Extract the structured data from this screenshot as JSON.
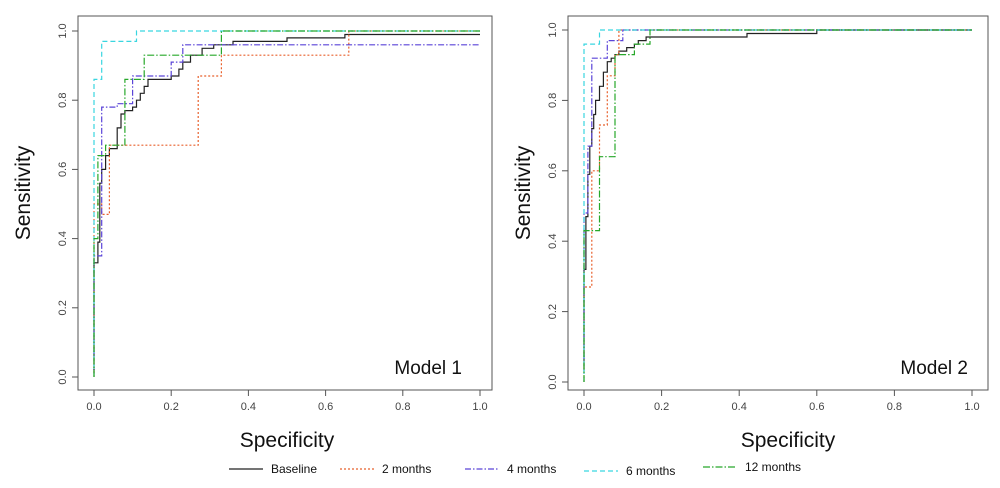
{
  "chart_data": [
    {
      "type": "line",
      "panel_label": "Model 1",
      "xlabel": "Specificity",
      "ylabel": "Sensitivity",
      "xlim": [
        0,
        1
      ],
      "ylim": [
        0,
        1
      ],
      "x_ticks": [
        "0.0",
        "0.2",
        "0.4",
        "0.6",
        "0.8",
        "1.0"
      ],
      "y_ticks": [
        "0.0",
        "0.2",
        "0.4",
        "0.6",
        "0.8",
        "1.0"
      ],
      "grid": false,
      "series": [
        {
          "name": "Baseline",
          "color": "#222222",
          "dash": "",
          "points": [
            [
              0,
              0.01
            ],
            [
              0,
              0.33
            ],
            [
              0.01,
              0.33
            ],
            [
              0.01,
              0.39
            ],
            [
              0.015,
              0.39
            ],
            [
              0.015,
              0.56
            ],
            [
              0.02,
              0.56
            ],
            [
              0.02,
              0.6
            ],
            [
              0.03,
              0.6
            ],
            [
              0.03,
              0.64
            ],
            [
              0.04,
              0.64
            ],
            [
              0.04,
              0.66
            ],
            [
              0.06,
              0.66
            ],
            [
              0.06,
              0.72
            ],
            [
              0.07,
              0.72
            ],
            [
              0.07,
              0.76
            ],
            [
              0.08,
              0.76
            ],
            [
              0.08,
              0.77
            ],
            [
              0.1,
              0.77
            ],
            [
              0.1,
              0.78
            ],
            [
              0.11,
              0.78
            ],
            [
              0.11,
              0.8
            ],
            [
              0.12,
              0.8
            ],
            [
              0.12,
              0.82
            ],
            [
              0.13,
              0.82
            ],
            [
              0.13,
              0.84
            ],
            [
              0.14,
              0.84
            ],
            [
              0.14,
              0.86
            ],
            [
              0.2,
              0.86
            ],
            [
              0.2,
              0.87
            ],
            [
              0.22,
              0.87
            ],
            [
              0.22,
              0.89
            ],
            [
              0.23,
              0.89
            ],
            [
              0.23,
              0.91
            ],
            [
              0.25,
              0.91
            ],
            [
              0.25,
              0.93
            ],
            [
              0.28,
              0.93
            ],
            [
              0.28,
              0.95
            ],
            [
              0.31,
              0.95
            ],
            [
              0.31,
              0.96
            ],
            [
              0.36,
              0.96
            ],
            [
              0.36,
              0.97
            ],
            [
              0.5,
              0.97
            ],
            [
              0.5,
              0.98
            ],
            [
              0.65,
              0.98
            ],
            [
              0.65,
              0.99
            ],
            [
              1.0,
              0.99
            ]
          ]
        },
        {
          "name": "2 months",
          "color": "#e8602c",
          "dash": "2,2",
          "points": [
            [
              0,
              0.0
            ],
            [
              0,
              0.5
            ],
            [
              0.02,
              0.5
            ],
            [
              0.02,
              0.47
            ],
            [
              0.04,
              0.47
            ],
            [
              0.04,
              0.67
            ],
            [
              0.27,
              0.67
            ],
            [
              0.27,
              0.87
            ],
            [
              0.33,
              0.87
            ],
            [
              0.33,
              0.93
            ],
            [
              0.66,
              0.93
            ],
            [
              0.66,
              1.0
            ],
            [
              1.0,
              1.0
            ]
          ]
        },
        {
          "name": "4 months",
          "color": "#5a44d8",
          "dash": "6,2,1.5,2",
          "points": [
            [
              0,
              0.06
            ],
            [
              0,
              0.35
            ],
            [
              0.02,
              0.35
            ],
            [
              0.02,
              0.78
            ],
            [
              0.06,
              0.78
            ],
            [
              0.06,
              0.79
            ],
            [
              0.1,
              0.79
            ],
            [
              0.1,
              0.87
            ],
            [
              0.2,
              0.87
            ],
            [
              0.2,
              0.91
            ],
            [
              0.23,
              0.91
            ],
            [
              0.23,
              0.96
            ],
            [
              1.0,
              0.96
            ]
          ]
        },
        {
          "name": "6 months",
          "color": "#39d6e0",
          "dash": "5,3",
          "points": [
            [
              0,
              0.0
            ],
            [
              0,
              0.86
            ],
            [
              0.02,
              0.86
            ],
            [
              0.02,
              0.97
            ],
            [
              0.11,
              0.97
            ],
            [
              0.11,
              1.0
            ],
            [
              1.0,
              1.0
            ]
          ]
        },
        {
          "name": "12 months",
          "color": "#27a82a",
          "dash": "7,2,1.5,2",
          "points": [
            [
              0,
              0.0
            ],
            [
              0,
              0.4
            ],
            [
              0.01,
              0.4
            ],
            [
              0.01,
              0.64
            ],
            [
              0.03,
              0.64
            ],
            [
              0.03,
              0.67
            ],
            [
              0.08,
              0.67
            ],
            [
              0.08,
              0.86
            ],
            [
              0.13,
              0.86
            ],
            [
              0.13,
              0.93
            ],
            [
              0.33,
              0.93
            ],
            [
              0.33,
              1.0
            ],
            [
              1.0,
              1.0
            ]
          ]
        }
      ]
    },
    {
      "type": "line",
      "panel_label": "Model 2",
      "xlabel": "Specificity",
      "ylabel": "Sensitivity",
      "xlim": [
        0,
        1
      ],
      "ylim": [
        0,
        1
      ],
      "x_ticks": [
        "0.0",
        "0.2",
        "0.4",
        "0.6",
        "0.8",
        "1.0"
      ],
      "y_ticks": [
        "0.0",
        "0.2",
        "0.4",
        "0.6",
        "0.8",
        "1.0"
      ],
      "grid": false,
      "series": [
        {
          "name": "Baseline",
          "color": "#222222",
          "dash": "",
          "points": [
            [
              0,
              0.03
            ],
            [
              0,
              0.32
            ],
            [
              0.005,
              0.32
            ],
            [
              0.005,
              0.47
            ],
            [
              0.01,
              0.47
            ],
            [
              0.01,
              0.59
            ],
            [
              0.015,
              0.59
            ],
            [
              0.015,
              0.67
            ],
            [
              0.02,
              0.67
            ],
            [
              0.02,
              0.72
            ],
            [
              0.025,
              0.72
            ],
            [
              0.025,
              0.76
            ],
            [
              0.03,
              0.76
            ],
            [
              0.03,
              0.8
            ],
            [
              0.04,
              0.8
            ],
            [
              0.04,
              0.84
            ],
            [
              0.05,
              0.84
            ],
            [
              0.05,
              0.88
            ],
            [
              0.06,
              0.88
            ],
            [
              0.06,
              0.91
            ],
            [
              0.07,
              0.91
            ],
            [
              0.07,
              0.92
            ],
            [
              0.08,
              0.92
            ],
            [
              0.08,
              0.93
            ],
            [
              0.09,
              0.93
            ],
            [
              0.09,
              0.94
            ],
            [
              0.11,
              0.94
            ],
            [
              0.11,
              0.95
            ],
            [
              0.13,
              0.95
            ],
            [
              0.13,
              0.96
            ],
            [
              0.14,
              0.96
            ],
            [
              0.14,
              0.97
            ],
            [
              0.16,
              0.97
            ],
            [
              0.16,
              0.98
            ],
            [
              0.42,
              0.98
            ],
            [
              0.42,
              0.99
            ],
            [
              0.6,
              0.99
            ],
            [
              0.6,
              1.0
            ],
            [
              1.0,
              1.0
            ]
          ]
        },
        {
          "name": "2 months",
          "color": "#e8602c",
          "dash": "2,2",
          "points": [
            [
              0,
              0.0
            ],
            [
              0,
              0.27
            ],
            [
              0.02,
              0.27
            ],
            [
              0.02,
              0.6
            ],
            [
              0.04,
              0.6
            ],
            [
              0.04,
              0.73
            ],
            [
              0.06,
              0.73
            ],
            [
              0.06,
              0.87
            ],
            [
              0.08,
              0.87
            ],
            [
              0.08,
              0.93
            ],
            [
              0.09,
              0.93
            ],
            [
              0.09,
              1.0
            ],
            [
              1.0,
              1.0
            ]
          ]
        },
        {
          "name": "4 months",
          "color": "#5a44d8",
          "dash": "6,2,1.5,2",
          "points": [
            [
              0,
              0.06
            ],
            [
              0,
              0.48
            ],
            [
              0.01,
              0.48
            ],
            [
              0.01,
              0.67
            ],
            [
              0.02,
              0.67
            ],
            [
              0.02,
              0.92
            ],
            [
              0.06,
              0.92
            ],
            [
              0.06,
              0.97
            ],
            [
              0.1,
              0.97
            ],
            [
              0.1,
              1.0
            ],
            [
              1.0,
              1.0
            ]
          ]
        },
        {
          "name": "6 months",
          "color": "#39d6e0",
          "dash": "5,3",
          "points": [
            [
              0,
              0.0
            ],
            [
              0,
              0.96
            ],
            [
              0.04,
              0.96
            ],
            [
              0.04,
              1.0
            ],
            [
              1.0,
              1.0
            ]
          ]
        },
        {
          "name": "12 months",
          "color": "#27a82a",
          "dash": "7,2,1.5,2",
          "points": [
            [
              0,
              0.0
            ],
            [
              0,
              0.43
            ],
            [
              0.04,
              0.43
            ],
            [
              0.04,
              0.64
            ],
            [
              0.08,
              0.64
            ],
            [
              0.08,
              0.93
            ],
            [
              0.13,
              0.93
            ],
            [
              0.13,
              0.96
            ],
            [
              0.17,
              0.96
            ],
            [
              0.17,
              1.0
            ],
            [
              1.0,
              1.0
            ]
          ]
        }
      ]
    }
  ],
  "legend": {
    "placement": "bottom",
    "entries": [
      {
        "label": "Baseline",
        "color": "#222222",
        "dash": ""
      },
      {
        "label": "2 months",
        "color": "#e8602c",
        "dash": "2,2"
      },
      {
        "label": "4 months",
        "color": "#5a44d8",
        "dash": "6,2,1.5,2"
      },
      {
        "label": "6 months",
        "color": "#39d6e0",
        "dash": "5,3"
      },
      {
        "label": "12 months",
        "color": "#27a82a",
        "dash": "7,2,1.5,2"
      }
    ]
  }
}
